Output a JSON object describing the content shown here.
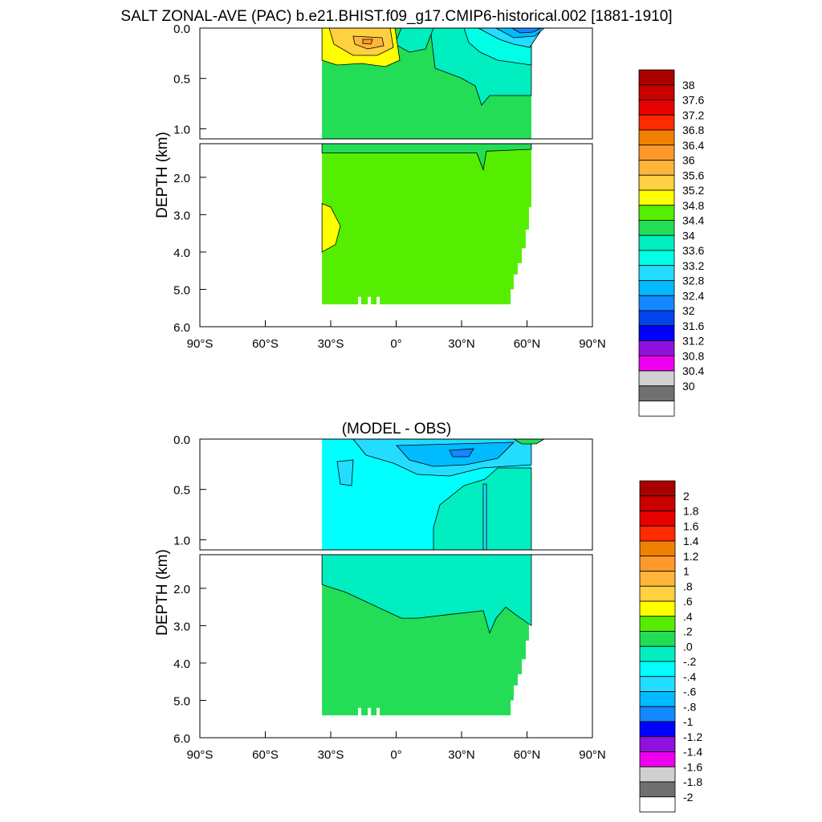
{
  "figure": {
    "title": "SALT ZONAL-AVE (PAC) b.e21.BHIST.f09_g17.CMIP6-historical.002 [1881-1910]"
  },
  "chart_data": [
    {
      "type": "heatmap",
      "panel": "top",
      "title": "SALT ZONAL-AVE (PAC) b.e21.BHIST.f09_g17.CMIP6-historical.002 [1881-1910]",
      "ylabel": "DEPTH (km)",
      "xlabel": "",
      "x_ticks": [
        "90°S",
        "60°S",
        "30°S",
        "0°",
        "30°N",
        "60°N",
        "90°N"
      ],
      "y_ticks_upper": [
        "0.0",
        "0.5",
        "1.0"
      ],
      "y_ticks_lower": [
        "2.0",
        "3.0",
        "4.0",
        "5.0",
        "6.0"
      ],
      "xlim": [
        -90,
        90
      ],
      "ylim_upper": [
        0,
        1.1
      ],
      "ylim_lower": [
        1.1,
        6.0
      ],
      "ocean_extent": {
        "lat_south": -34,
        "lat_north": 62,
        "max_depth_km": 5.4
      },
      "colorbar": {
        "labels": [
          "38",
          "37.6",
          "37.2",
          "36.8",
          "36.4",
          "36",
          "35.6",
          "35.2",
          "34.8",
          "34.4",
          "34",
          "33.6",
          "33.2",
          "32.8",
          "32.4",
          "32",
          "31.6",
          "31.2",
          "30.8",
          "30.4",
          "30"
        ],
        "colors": [
          "#aa0000",
          "#c80000",
          "#e60000",
          "#ff2a00",
          "#f08000",
          "#ff9a2a",
          "#ffb43c",
          "#ffd040",
          "#ffff00",
          "#55ee00",
          "#22dd55",
          "#00eec0",
          "#00ffe6",
          "#22ddff",
          "#00bbff",
          "#1488ff",
          "#0044ee",
          "#0000ff",
          "#9010dd",
          "#ee00ee",
          "#d0d0d0",
          "#707070",
          "#ffffff"
        ]
      },
      "dominant_values": {
        "deep_water": 34.6,
        "subtropical_surface_max": 35.8,
        "subpolar_surface_min": 32.0
      }
    },
    {
      "type": "heatmap",
      "panel": "bottom",
      "title": "(MODEL - OBS)",
      "ylabel": "DEPTH (km)",
      "xlabel": "",
      "x_ticks": [
        "90°S",
        "60°S",
        "30°S",
        "0°",
        "30°N",
        "60°N",
        "90°N"
      ],
      "y_ticks_upper": [
        "0.0",
        "0.5",
        "1.0"
      ],
      "y_ticks_lower": [
        "2.0",
        "3.0",
        "4.0",
        "5.0",
        "6.0"
      ],
      "xlim": [
        -90,
        90
      ],
      "ylim_upper": [
        0,
        1.1
      ],
      "ylim_lower": [
        1.1,
        6.0
      ],
      "ocean_extent": {
        "lat_south": -34,
        "lat_north": 62,
        "max_depth_km": 5.4
      },
      "colorbar": {
        "labels": [
          "2",
          "1.8",
          "1.6",
          "1.4",
          "1.2",
          "1",
          ".8",
          ".6",
          ".4",
          ".2",
          ".0",
          "-.2",
          "-.4",
          "-.6",
          "-.8",
          "-1",
          "-1.2",
          "-1.4",
          "-1.6",
          "-1.8",
          "-2"
        ],
        "colors": [
          "#aa0000",
          "#c80000",
          "#e60000",
          "#ff2a00",
          "#f08000",
          "#ff9a2a",
          "#ffb43c",
          "#ffd040",
          "#ffff00",
          "#55ee00",
          "#22dd55",
          "#00eec0",
          "#00ffff",
          "#22ddff",
          "#00bbff",
          "#1488ff",
          "#0000ff",
          "#9010dd",
          "#ee00ee",
          "#d0d0d0",
          "#707070",
          "#ffffff"
        ]
      },
      "dominant_values": {
        "deep_water": 0.1,
        "intermediate_water": -0.1,
        "upper_ocean": -0.3,
        "surface_min": -0.7
      }
    }
  ]
}
